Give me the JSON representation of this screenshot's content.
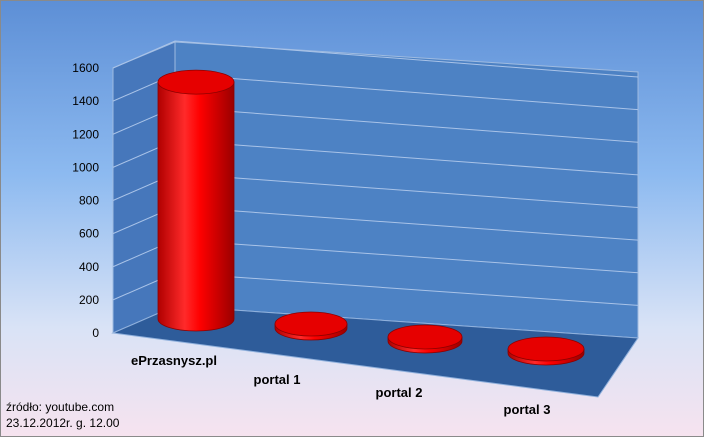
{
  "chart_data": {
    "type": "bar",
    "style": "3d-cylinder",
    "categories": [
      "ePrzasnysz.pl",
      "portal 1",
      "portal 2",
      "portal 3"
    ],
    "values": [
      1430,
      0,
      0,
      0
    ],
    "ylim": [
      0,
      1600
    ],
    "yticks": [
      "0",
      "200",
      "400",
      "600",
      "800",
      "1000",
      "1200",
      "1400",
      "1600"
    ],
    "grid": true,
    "colors": {
      "bar": "#ff0000",
      "wall": "#4a7fc0",
      "floor": "#2f5f9f"
    }
  },
  "source": {
    "line1": "źródło: youtube.com",
    "line2": "23.12.2012r. g. 12.00"
  }
}
